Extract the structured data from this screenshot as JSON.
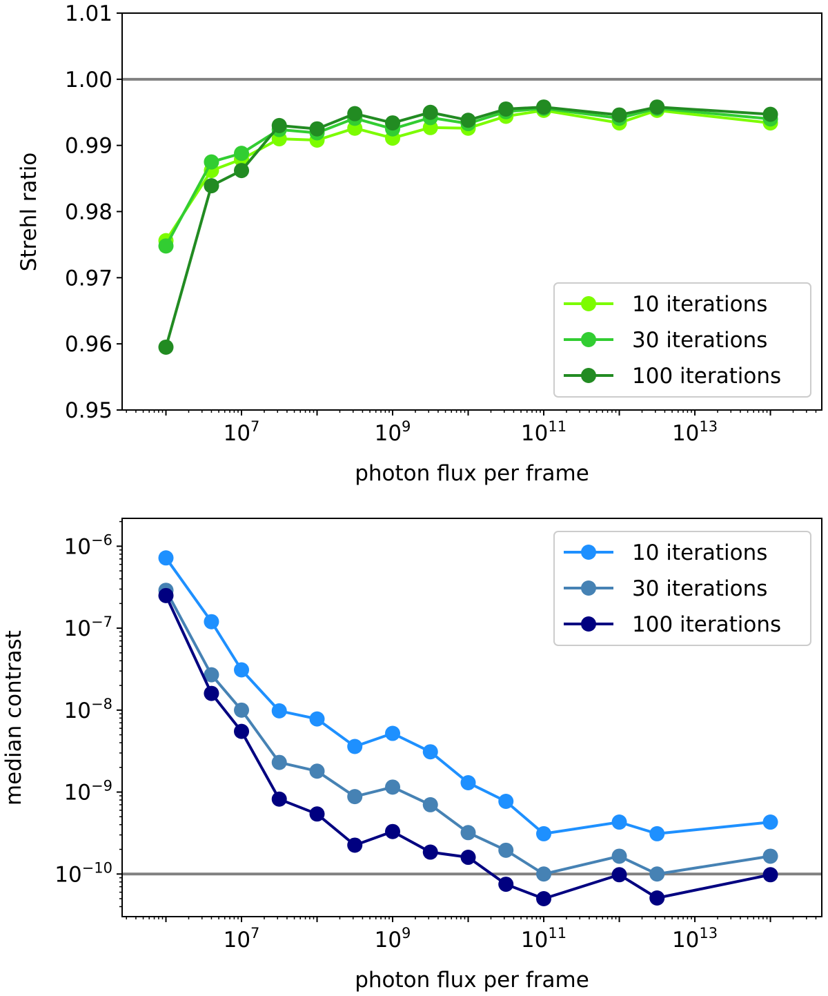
{
  "chart_data": [
    {
      "type": "line",
      "xscale": "log",
      "yscale": "linear",
      "x": [
        1000000,
        4000000,
        10000000,
        31600000,
        100000000,
        316000000,
        1000000000,
        3160000000,
        10000000000,
        31600000000,
        100000000000,
        1000000000000,
        3160000000000,
        100000000000000
      ],
      "series": [
        {
          "name": "10 iterations",
          "color": "#7cfc00",
          "values": [
            0.9756,
            0.9862,
            0.9879,
            0.991,
            0.9908,
            0.9926,
            0.9911,
            0.9927,
            0.9926,
            0.9944,
            0.9953,
            0.9934,
            0.9953,
            0.9934
          ]
        },
        {
          "name": "30 iterations",
          "color": "#32cd32",
          "values": [
            0.9748,
            0.9875,
            0.9888,
            0.9924,
            0.9919,
            0.9941,
            0.9925,
            0.9942,
            0.9933,
            0.9951,
            0.9956,
            0.9941,
            0.9956,
            0.994
          ]
        },
        {
          "name": "100 iterations",
          "color": "#228b22",
          "values": [
            0.9595,
            0.9839,
            0.9862,
            0.993,
            0.9925,
            0.9948,
            0.9934,
            0.995,
            0.9938,
            0.9955,
            0.9958,
            0.9946,
            0.9958,
            0.9947
          ]
        }
      ],
      "hline": 1.0,
      "hline_color": "#808080",
      "ylim": [
        0.95,
        1.01
      ],
      "yticks": [
        "0.95",
        "0.96",
        "0.97",
        "0.98",
        "0.99",
        "1.00",
        "1.01"
      ],
      "xlim_log10": [
        5.42,
        14.68
      ],
      "xticks": [
        {
          "base": "10",
          "exp": "7"
        },
        {
          "base": "10",
          "exp": "9"
        },
        {
          "base": "10",
          "exp": "11"
        },
        {
          "base": "10",
          "exp": "13"
        }
      ],
      "xlabel": "photon flux per frame",
      "ylabel": "Strehl ratio",
      "legend_loc": "lower-right"
    },
    {
      "type": "line",
      "xscale": "log",
      "yscale": "log",
      "x": [
        1000000,
        4000000,
        10000000,
        31600000,
        100000000,
        316000000,
        1000000000,
        3160000000,
        10000000000,
        31600000000,
        100000000000,
        1000000000000,
        3160000000000,
        100000000000000
      ],
      "series": [
        {
          "name": "10 iterations",
          "color": "#1e90ff",
          "values": [
            7.2e-07,
            1.2e-07,
            3.1e-08,
            9.8e-09,
            7.8e-09,
            3.6e-09,
            5.2e-09,
            3.1e-09,
            1.3e-09,
            7.7e-10,
            3.1e-10,
            4.3e-10,
            3.1e-10,
            4.3e-10
          ]
        },
        {
          "name": "30 iterations",
          "color": "#4682b4",
          "values": [
            2.9e-07,
            2.7e-08,
            1e-08,
            2.3e-09,
            1.8e-09,
            8.8e-10,
            1.15e-09,
            7e-10,
            3.2e-10,
            1.95e-10,
            1e-10,
            1.65e-10,
            1e-10,
            1.65e-10
          ]
        },
        {
          "name": "100 iterations",
          "color": "#000080",
          "values": [
            2.5e-07,
            1.6e-08,
            5.5e-09,
            8.2e-10,
            5.4e-10,
            2.25e-10,
            3.3e-10,
            1.85e-10,
            1.6e-10,
            7.5e-11,
            5e-11,
            9.8e-11,
            5.1e-11,
            9.8e-11
          ]
        }
      ],
      "hline": 1e-10,
      "hline_color": "#808080",
      "ylim_log10": [
        -10.52,
        -5.66
      ],
      "yticks": [
        {
          "base": "10",
          "exp": "−10",
          "log": -10
        },
        {
          "base": "10",
          "exp": "−9",
          "log": -9
        },
        {
          "base": "10",
          "exp": "−8",
          "log": -8
        },
        {
          "base": "10",
          "exp": "−7",
          "log": -7
        },
        {
          "base": "10",
          "exp": "−6",
          "log": -6
        }
      ],
      "xlim_log10": [
        5.42,
        14.68
      ],
      "xticks": [
        {
          "base": "10",
          "exp": "7"
        },
        {
          "base": "10",
          "exp": "9"
        },
        {
          "base": "10",
          "exp": "11"
        },
        {
          "base": "10",
          "exp": "13"
        }
      ],
      "xlabel": "photon flux per frame",
      "ylabel": "median contrast",
      "legend_loc": "upper-right"
    }
  ]
}
